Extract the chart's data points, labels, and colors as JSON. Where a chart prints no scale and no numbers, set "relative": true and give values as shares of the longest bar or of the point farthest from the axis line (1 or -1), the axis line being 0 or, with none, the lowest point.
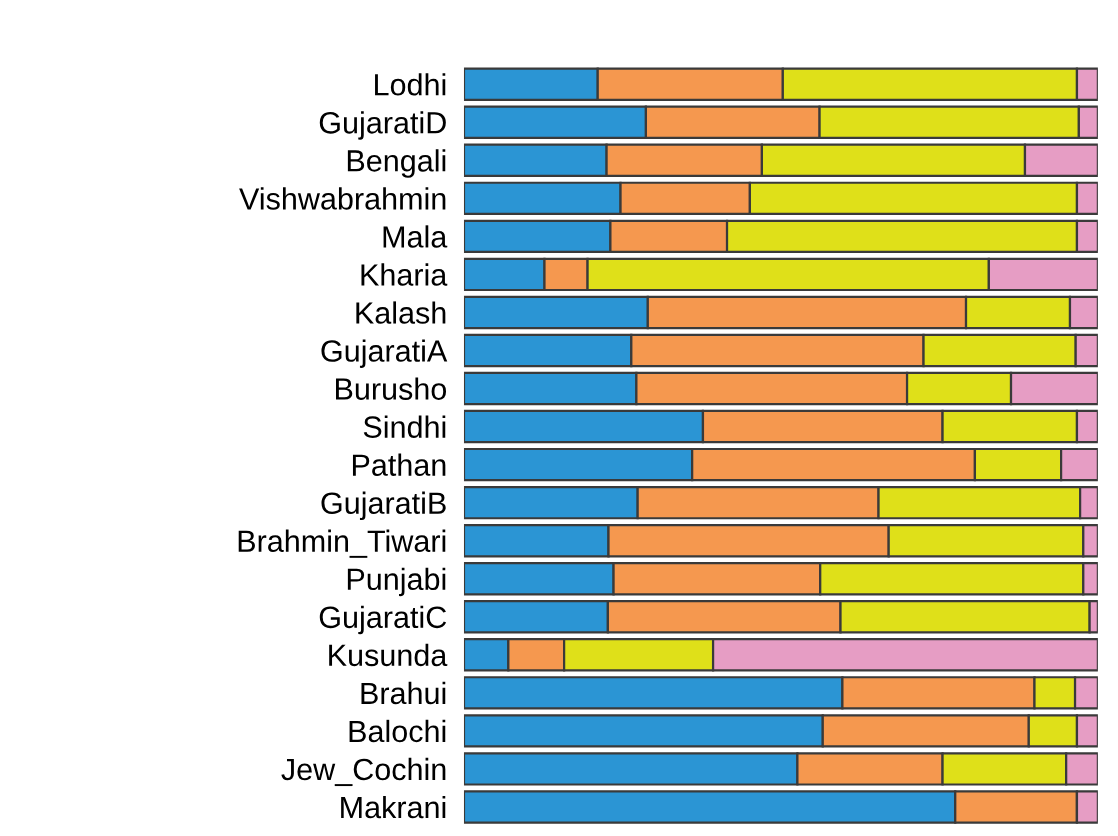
{
  "chart_data": {
    "type": "bar",
    "orientation": "horizontal",
    "stacked": true,
    "relative": true,
    "tick_labels": "y",
    "legend": false,
    "grid": false,
    "categories": [
      "Lodhi",
      "GujaratiD",
      "Bengali",
      "Vishwabrahmin",
      "Mala",
      "Kharia",
      "Kalash",
      "GujaratiA",
      "Burusho",
      "Sindhi",
      "Pathan",
      "GujaratiB",
      "Brahmin_Tiwari",
      "Punjabi",
      "GujaratiC",
      "Kusunda",
      "Brahui",
      "Balochi",
      "Jew_Cochin",
      "Makrani"
    ],
    "series": [
      {
        "color": "#2b95d4",
        "values": [
          0.211,
          0.287,
          0.225,
          0.247,
          0.231,
          0.127,
          0.29,
          0.264,
          0.272,
          0.377,
          0.36,
          0.274,
          0.228,
          0.236,
          0.227,
          0.07,
          0.597,
          0.566,
          0.526,
          0.775
        ]
      },
      {
        "color": "#f5984f",
        "values": [
          0.292,
          0.274,
          0.245,
          0.204,
          0.184,
          0.068,
          0.502,
          0.461,
          0.427,
          0.378,
          0.446,
          0.38,
          0.442,
          0.326,
          0.367,
          0.088,
          0.303,
          0.325,
          0.229,
          0.192
        ]
      },
      {
        "color": "#dfe019",
        "values": [
          0.464,
          0.409,
          0.415,
          0.516,
          0.552,
          0.633,
          0.164,
          0.24,
          0.164,
          0.212,
          0.136,
          0.318,
          0.307,
          0.415,
          0.393,
          0.235,
          0.064,
          0.076,
          0.195,
          0.0
        ]
      },
      {
        "color": "#e69dc4",
        "values": [
          0.033,
          0.03,
          0.115,
          0.033,
          0.033,
          0.172,
          0.044,
          0.035,
          0.137,
          0.033,
          0.058,
          0.028,
          0.023,
          0.023,
          0.013,
          0.607,
          0.036,
          0.033,
          0.05,
          0.033
        ]
      }
    ]
  }
}
